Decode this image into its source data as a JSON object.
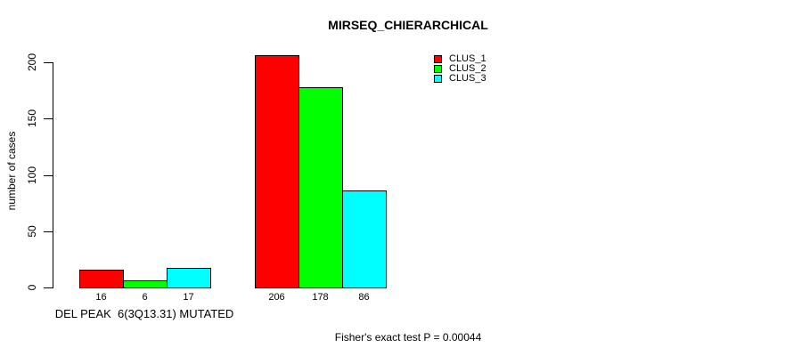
{
  "chart_data": {
    "type": "bar",
    "title": "MIRSEQ_CHIERARCHICAL",
    "ylabel": "number of cases",
    "xlabel": "",
    "ylim": [
      0,
      200
    ],
    "yticks": [
      0,
      50,
      100,
      150,
      200
    ],
    "grid": false,
    "legend_position": "top-right",
    "groups": [
      "DEL PEAK  6(3Q13.31) MUTATED",
      ""
    ],
    "series": [
      {
        "name": "CLUS_1",
        "color": "#FF0000",
        "values": [
          16,
          206
        ]
      },
      {
        "name": "CLUS_2",
        "color": "#00FF00",
        "values": [
          6,
          178
        ]
      },
      {
        "name": "CLUS_3",
        "color": "#00FFFF",
        "values": [
          17,
          86
        ]
      }
    ],
    "bar_value_labels": [
      [
        16,
        6,
        17
      ],
      [
        206,
        178,
        86
      ]
    ],
    "annotation": "Fisher's exact test P = 0.00044"
  }
}
